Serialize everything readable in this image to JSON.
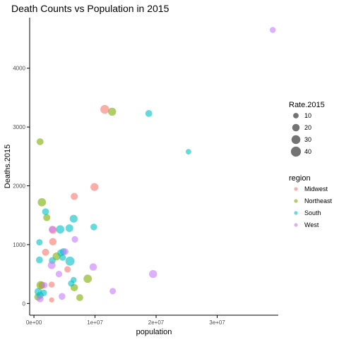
{
  "chart_data": {
    "type": "scatter",
    "title": "Death Counts vs Population in 2015",
    "xlabel": "population",
    "ylabel": "Deaths.2015",
    "xlim": [
      -700000,
      40000000
    ],
    "ylim": [
      -200,
      4860
    ],
    "x_ticks": [
      {
        "value": 0,
        "label": "0e+00"
      },
      {
        "value": 10000000,
        "label": "1e+07"
      },
      {
        "value": 20000000,
        "label": "2e+07"
      },
      {
        "value": 30000000,
        "label": "3e+07"
      }
    ],
    "y_ticks": [
      {
        "value": 0,
        "label": "0"
      },
      {
        "value": 1000,
        "label": "1000"
      },
      {
        "value": 2000,
        "label": "2000"
      },
      {
        "value": 3000,
        "label": "3000"
      },
      {
        "value": 4000,
        "label": "4000"
      }
    ],
    "grid": false,
    "legend_position": "right",
    "size_legend": {
      "title": "Rate.2015",
      "values": [
        10,
        20,
        30,
        40
      ]
    },
    "color_legend": {
      "title": "region",
      "items": [
        {
          "name": "Midwest",
          "color": "#F8766D"
        },
        {
          "name": "Northeast",
          "color": "#7CAE00"
        },
        {
          "name": "South",
          "color": "#00BFC4"
        },
        {
          "name": "West",
          "color": "#C77CFF"
        }
      ]
    },
    "series": [
      {
        "name": "Midwest",
        "color": "#F8766D",
        "points": [
          {
            "x": 11600000,
            "y": 3300,
            "rate": 30
          },
          {
            "x": 9900000,
            "y": 1980,
            "rate": 23
          },
          {
            "x": 6600000,
            "y": 1820,
            "rate": 18
          },
          {
            "x": 3100000,
            "y": 1250,
            "rate": 22
          },
          {
            "x": 3100000,
            "y": 1050,
            "rate": 20
          },
          {
            "x": 1900000,
            "y": 870,
            "rate": 18
          },
          {
            "x": 5500000,
            "y": 580,
            "rate": 14
          },
          {
            "x": 2900000,
            "y": 320,
            "rate": 12
          },
          {
            "x": 1300000,
            "y": 310,
            "rate": 17
          },
          {
            "x": 2900000,
            "y": 60,
            "rate": 8
          }
        ]
      },
      {
        "name": "Northeast",
        "color": "#7CAE00",
        "points": [
          {
            "x": 12800000,
            "y": 3260,
            "rate": 24
          },
          {
            "x": 1000000,
            "y": 2750,
            "rate": 17
          },
          {
            "x": 1300000,
            "y": 1720,
            "rate": 26
          },
          {
            "x": 2100000,
            "y": 1460,
            "rate": 18
          },
          {
            "x": 3700000,
            "y": 800,
            "rate": 23
          },
          {
            "x": 8800000,
            "y": 420,
            "rate": 26
          },
          {
            "x": 1100000,
            "y": 310,
            "rate": 26
          },
          {
            "x": 6600000,
            "y": 270,
            "rate": 20
          },
          {
            "x": 7500000,
            "y": 100,
            "rate": 17
          },
          {
            "x": 630000,
            "y": 110,
            "rate": 18
          }
        ]
      },
      {
        "name": "South",
        "color": "#00BFC4",
        "points": [
          {
            "x": 18800000,
            "y": 3230,
            "rate": 17
          },
          {
            "x": 25300000,
            "y": 2580,
            "rate": 10
          },
          {
            "x": 1900000,
            "y": 1560,
            "rate": 17
          },
          {
            "x": 6500000,
            "y": 1440,
            "rate": 23
          },
          {
            "x": 9800000,
            "y": 1300,
            "rate": 16
          },
          {
            "x": 4300000,
            "y": 1260,
            "rate": 26
          },
          {
            "x": 5800000,
            "y": 1280,
            "rate": 22
          },
          {
            "x": 900000,
            "y": 1040,
            "rate": 14
          },
          {
            "x": 4800000,
            "y": 880,
            "rate": 17
          },
          {
            "x": 4400000,
            "y": 860,
            "rate": 18
          },
          {
            "x": 4700000,
            "y": 780,
            "rate": 15
          },
          {
            "x": 900000,
            "y": 740,
            "rate": 17
          },
          {
            "x": 5900000,
            "y": 720,
            "rate": 32
          },
          {
            "x": 3000000,
            "y": 730,
            "rate": 16
          },
          {
            "x": 6500000,
            "y": 400,
            "rate": 12
          },
          {
            "x": 6100000,
            "y": 340,
            "rate": 14
          },
          {
            "x": 700000,
            "y": 200,
            "rate": 20
          },
          {
            "x": 1600000,
            "y": 180,
            "rate": 15
          },
          {
            "x": 1000000,
            "y": 140,
            "rate": 18
          }
        ]
      },
      {
        "name": "West",
        "color": "#C77CFF",
        "points": [
          {
            "x": 39100000,
            "y": 4650,
            "rate": 12
          },
          {
            "x": 19500000,
            "y": 500,
            "rate": 24
          },
          {
            "x": 12900000,
            "y": 210,
            "rate": 14
          },
          {
            "x": 9700000,
            "y": 620,
            "rate": 20
          },
          {
            "x": 6700000,
            "y": 1090,
            "rate": 15
          },
          {
            "x": 3000000,
            "y": 1260,
            "rate": 18
          },
          {
            "x": 5100000,
            "y": 880,
            "rate": 16
          },
          {
            "x": 2900000,
            "y": 650,
            "rate": 22
          },
          {
            "x": 4100000,
            "y": 500,
            "rate": 15
          },
          {
            "x": 4600000,
            "y": 120,
            "rate": 16
          },
          {
            "x": 1700000,
            "y": 310,
            "rate": 14
          },
          {
            "x": 1000000,
            "y": 80,
            "rate": 18
          }
        ]
      }
    ]
  }
}
